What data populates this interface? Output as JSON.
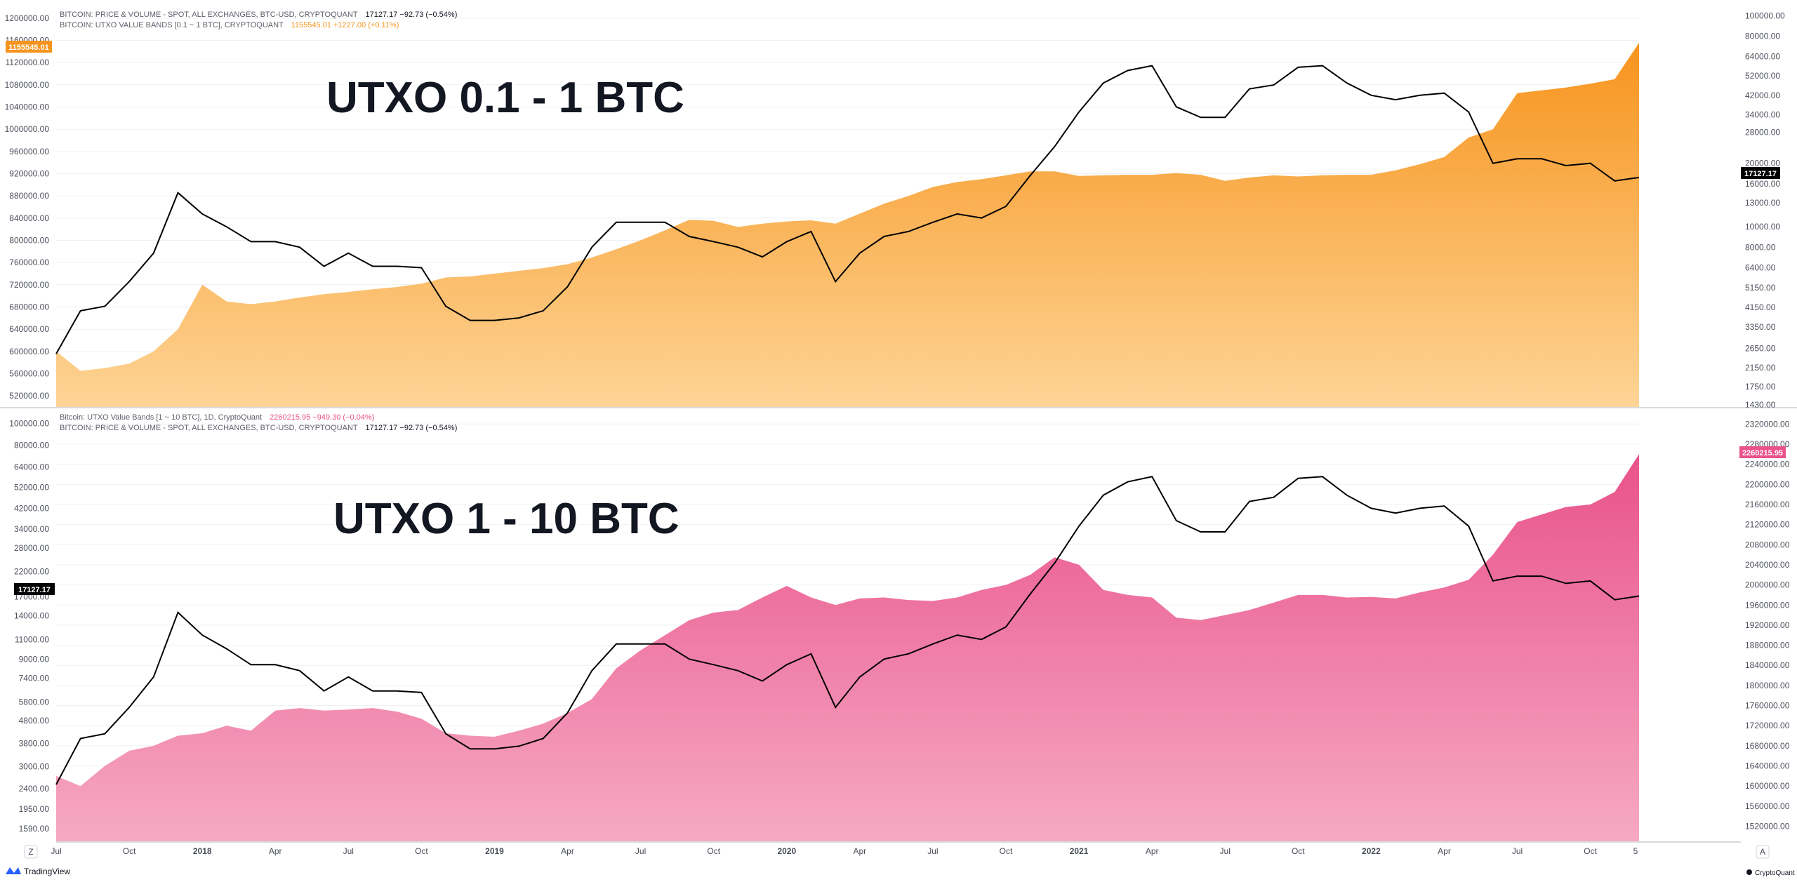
{
  "colors": {
    "orange_top": "#f7941d",
    "orange_bottom": "#fdd496",
    "pink_top": "#e9528a",
    "pink_bottom": "#f6a9c3",
    "price_line": "#000000",
    "grid": "#eef0f3",
    "axis_text": "#4a4e59",
    "pink_badge": "#e9528a",
    "orange_badge": "#f7941d"
  },
  "panels": {
    "top": {
      "title": "UTXO 0.1 - 1 BTC",
      "legend_price": "BITCOIN: PRICE & VOLUME - SPOT, ALL EXCHANGES, BTC-USD, CRYPTOQUANT",
      "legend_price_values": "17127.17  −92.73 (−0.54%)",
      "legend_band": "BITCOIN: UTXO VALUE BANDS [0.1 ~ 1 BTC], CRYPTOQUANT",
      "legend_band_values": "1155545.01  +1227.00 (+0.11%)",
      "left_badge": "1155545.01",
      "right_badge": "17127.17",
      "left_ticks": [
        "1200000.00",
        "1160000.00",
        "1120000.00",
        "1080000.00",
        "1040000.00",
        "1000000.00",
        "960000.00",
        "920000.00",
        "880000.00",
        "840000.00",
        "800000.00",
        "760000.00",
        "720000.00",
        "680000.00",
        "640000.00",
        "600000.00",
        "560000.00",
        "520000.00"
      ],
      "right_ticks": [
        "100000.00",
        "80000.00",
        "64000.00",
        "52000.00",
        "42000.00",
        "34000.00",
        "28000.00",
        "20000.00",
        "16000.00",
        "13000.00",
        "10000.00",
        "8000.00",
        "6400.00",
        "5150.00",
        "4150.00",
        "3350.00",
        "2650.00",
        "2150.00",
        "1750.00",
        "1430.00"
      ]
    },
    "bottom": {
      "title": "UTXO 1 - 10 BTC",
      "legend_band": "Bitcoin: UTXO Value Bands [1 ~ 10 BTC], 1D, CryptoQuant",
      "legend_band_values": "2260215.95  −949.30 (−0.04%)",
      "legend_price": "BITCOIN: PRICE & VOLUME - SPOT, ALL EXCHANGES, BTC-USD, CRYPTOQUANT",
      "legend_price_values": "17127.17  −92.73 (−0.54%)",
      "left_badge": "17127.17",
      "right_badge": "2260215.95",
      "left_ticks": [
        "100000.00",
        "80000.00",
        "64000.00",
        "52000.00",
        "42000.00",
        "34000.00",
        "28000.00",
        "22000.00",
        "17000.00",
        "14000.00",
        "11000.00",
        "9000.00",
        "7400.00",
        "5800.00",
        "4800.00",
        "3800.00",
        "3000.00",
        "2400.00",
        "1950.00",
        "1590.00"
      ],
      "right_ticks": [
        "2320000.00",
        "2280000.00",
        "2240000.00",
        "2200000.00",
        "2160000.00",
        "2120000.00",
        "2080000.00",
        "2040000.00",
        "2000000.00",
        "1960000.00",
        "1920000.00",
        "1880000.00",
        "1840000.00",
        "1800000.00",
        "1760000.00",
        "1720000.00",
        "1680000.00",
        "1640000.00",
        "1600000.00",
        "1560000.00",
        "1520000.00"
      ]
    }
  },
  "x_axis": {
    "labels": [
      "Jul",
      "Oct",
      "2018",
      "Apr",
      "Jul",
      "Oct",
      "2019",
      "Apr",
      "Jul",
      "Oct",
      "2020",
      "Apr",
      "Jul",
      "Oct",
      "2021",
      "Apr",
      "Jul",
      "Oct",
      "2022",
      "Apr",
      "Jul",
      "Oct",
      "5"
    ],
    "bold": [
      "2018",
      "2019",
      "2020",
      "2021",
      "2022"
    ]
  },
  "footer": {
    "left_button": "Z",
    "right_button": "A",
    "tradingview": "TradingView",
    "cryptoquant": "CryptoQuant"
  },
  "chart_data": [
    {
      "type": "area",
      "title": "UTXO 0.1 - 1 BTC",
      "x": [
        "2017-07",
        "2017-08",
        "2017-09",
        "2017-10",
        "2017-11",
        "2017-12",
        "2018-01",
        "2018-02",
        "2018-03",
        "2018-04",
        "2018-05",
        "2018-06",
        "2018-07",
        "2018-08",
        "2018-09",
        "2018-10",
        "2018-11",
        "2018-12",
        "2019-01",
        "2019-02",
        "2019-03",
        "2019-04",
        "2019-05",
        "2019-06",
        "2019-07",
        "2019-08",
        "2019-09",
        "2019-10",
        "2019-11",
        "2019-12",
        "2020-01",
        "2020-02",
        "2020-03",
        "2020-04",
        "2020-05",
        "2020-06",
        "2020-07",
        "2020-08",
        "2020-09",
        "2020-10",
        "2020-11",
        "2020-12",
        "2021-01",
        "2021-02",
        "2021-03",
        "2021-04",
        "2021-05",
        "2021-06",
        "2021-07",
        "2021-08",
        "2021-09",
        "2021-10",
        "2021-11",
        "2021-12",
        "2022-01",
        "2022-02",
        "2022-03",
        "2022-04",
        "2022-05",
        "2022-06",
        "2022-07",
        "2022-08",
        "2022-09",
        "2022-10",
        "2022-11",
        "2022-12"
      ],
      "series": [
        {
          "axis": "left",
          "values": [
            600000,
            565000,
            570000,
            578000,
            600000,
            640000,
            720000,
            690000,
            685000,
            690000,
            697000,
            703000,
            707000,
            712000,
            716000,
            722000,
            733000,
            735000,
            740000,
            745000,
            750000,
            757000,
            769000,
            784000,
            800000,
            818000,
            837000,
            835000,
            824000,
            830000,
            834000,
            836000,
            830000,
            848000,
            866000,
            880000,
            896000,
            905000,
            910000,
            917000,
            924000,
            924000,
            916000,
            917000,
            918000,
            918000,
            921000,
            918000,
            907000,
            913000,
            917000,
            915000,
            917000,
            918000,
            918000,
            926000,
            937000,
            950000,
            985000,
            1000000,
            1065000,
            1070000,
            1075000,
            1082000,
            1090000,
            1155545
          ]
        },
        {
          "axis": "right",
          "values": [
            2500,
            4000,
            4200,
            5500,
            7500,
            14500,
            11500,
            10000,
            8500,
            8500,
            8000,
            6500,
            7500,
            6500,
            6500,
            6400,
            4200,
            3600,
            3600,
            3700,
            4000,
            5200,
            8000,
            10500,
            10500,
            10500,
            9000,
            8500,
            8000,
            7200,
            8500,
            9500,
            5500,
            7500,
            9000,
            9500,
            10500,
            11500,
            11000,
            12500,
            17500,
            24000,
            35000,
            48000,
            55000,
            58000,
            37000,
            33000,
            33000,
            45000,
            47000,
            57000,
            58000,
            48000,
            42000,
            40000,
            42000,
            43000,
            35000,
            20000,
            21000,
            21000,
            19500,
            20000,
            16500,
            17127
          ]
        }
      ],
      "ylim_left": [
        500000,
        1220000
      ],
      "ylim_right": [
        1400,
        110000
      ],
      "ylabel": "",
      "right_scale": "log"
    },
    {
      "type": "area",
      "title": "UTXO 1 - 10 BTC",
      "x": [
        "2017-07",
        "2017-08",
        "2017-09",
        "2017-10",
        "2017-11",
        "2017-12",
        "2018-01",
        "2018-02",
        "2018-03",
        "2018-04",
        "2018-05",
        "2018-06",
        "2018-07",
        "2018-08",
        "2018-09",
        "2018-10",
        "2018-11",
        "2018-12",
        "2019-01",
        "2019-02",
        "2019-03",
        "2019-04",
        "2019-05",
        "2019-06",
        "2019-07",
        "2019-08",
        "2019-09",
        "2019-10",
        "2019-11",
        "2019-12",
        "2020-01",
        "2020-02",
        "2020-03",
        "2020-04",
        "2020-05",
        "2020-06",
        "2020-07",
        "2020-08",
        "2020-09",
        "2020-10",
        "2020-11",
        "2020-12",
        "2021-01",
        "2021-02",
        "2021-03",
        "2021-04",
        "2021-05",
        "2021-06",
        "2021-07",
        "2021-08",
        "2021-09",
        "2021-10",
        "2021-11",
        "2021-12",
        "2022-01",
        "2022-02",
        "2022-03",
        "2022-04",
        "2022-05",
        "2022-06",
        "2022-07",
        "2022-08",
        "2022-09",
        "2022-10",
        "2022-11",
        "2022-12"
      ],
      "series": [
        {
          "axis": "right",
          "values": [
            1620000,
            1600000,
            1640000,
            1670000,
            1680000,
            1700000,
            1705000,
            1720000,
            1710000,
            1750000,
            1755000,
            1750000,
            1752000,
            1755000,
            1748000,
            1734000,
            1705000,
            1700000,
            1698000,
            1710000,
            1724000,
            1745000,
            1773000,
            1834000,
            1870000,
            1900000,
            1930000,
            1945000,
            1950000,
            1975000,
            1998000,
            1975000,
            1960000,
            1973000,
            1975000,
            1970000,
            1968000,
            1975000,
            1990000,
            2000000,
            2020000,
            2055000,
            2040000,
            1990000,
            1980000,
            1975000,
            1935000,
            1930000,
            1940000,
            1950000,
            1965000,
            1980000,
            1980000,
            1975000,
            1976000,
            1973000,
            1985000,
            1995000,
            2010000,
            2060000,
            2125000,
            2140000,
            2155000,
            2160000,
            2185000,
            2260216
          ]
        },
        {
          "axis": "left",
          "values": [
            2500,
            4000,
            4200,
            5500,
            7500,
            14500,
            11500,
            10000,
            8500,
            8500,
            8000,
            6500,
            7500,
            6500,
            6500,
            6400,
            4200,
            3600,
            3600,
            3700,
            4000,
            5200,
            8000,
            10500,
            10500,
            10500,
            9000,
            8500,
            8000,
            7200,
            8500,
            9500,
            5500,
            7500,
            9000,
            9500,
            10500,
            11500,
            11000,
            12500,
            17500,
            24000,
            35000,
            48000,
            55000,
            58000,
            37000,
            33000,
            33000,
            45000,
            47000,
            57000,
            58000,
            48000,
            42000,
            40000,
            42000,
            43000,
            35000,
            20000,
            21000,
            21000,
            19500,
            20000,
            16500,
            17127
          ]
        }
      ],
      "ylim_left": [
        1400,
        110000
      ],
      "ylim_right": [
        1490000,
        2340000
      ],
      "ylabel": "",
      "left_scale": "log"
    }
  ]
}
